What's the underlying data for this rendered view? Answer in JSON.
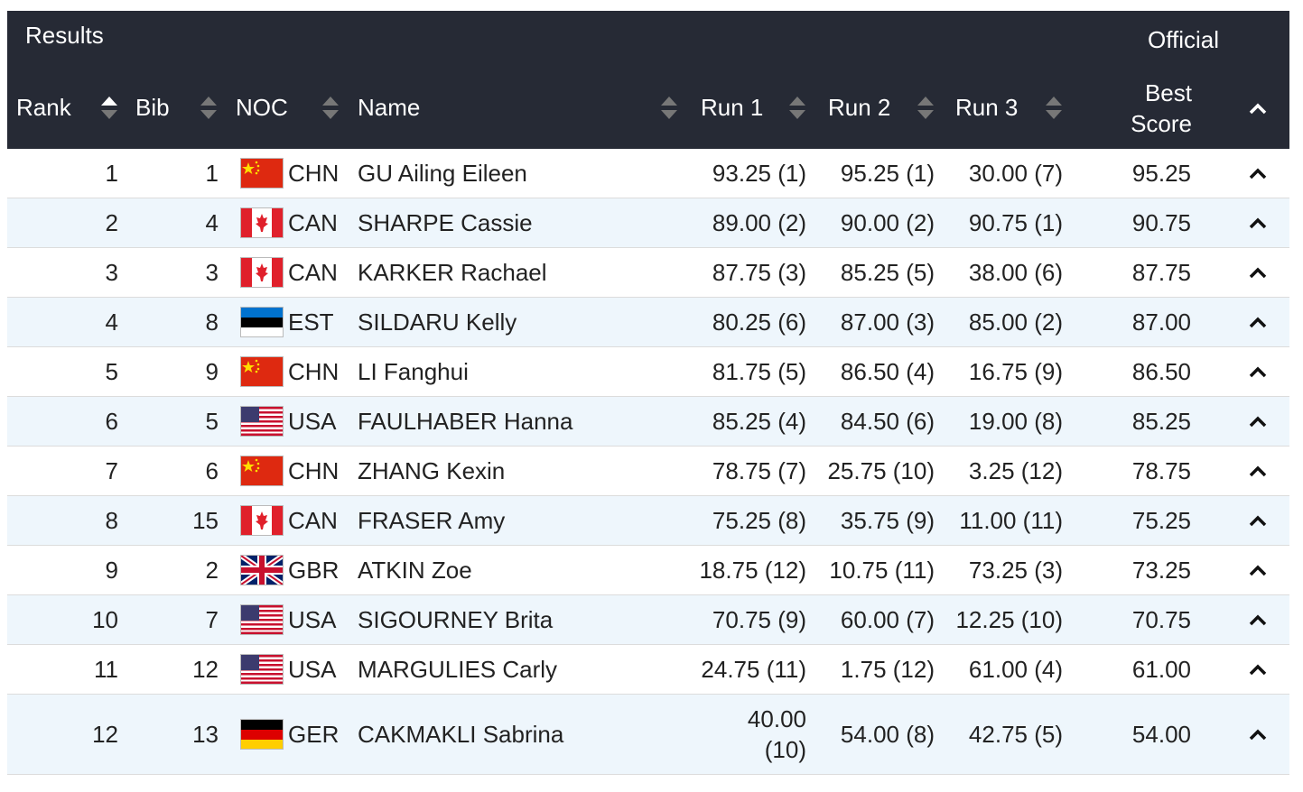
{
  "header": {
    "title": "Results",
    "status": "Official"
  },
  "table": {
    "columns": [
      "Rank",
      "Bib",
      "NOC",
      "Name",
      "Run 1",
      "Run 2",
      "Run 3",
      "Best Score"
    ],
    "rows": [
      [
        1,
        1,
        "CHN",
        "GU Ailing Eileen",
        "93.25 (1)",
        "95.25 (1)",
        "30.00 (7)",
        "95.25"
      ],
      [
        2,
        4,
        "CAN",
        "SHARPE Cassie",
        "89.00 (2)",
        "90.00 (2)",
        "90.75 (1)",
        "90.75"
      ],
      [
        3,
        3,
        "CAN",
        "KARKER Rachael",
        "87.75 (3)",
        "85.25 (5)",
        "38.00 (6)",
        "87.75"
      ],
      [
        4,
        8,
        "EST",
        "SILDARU Kelly",
        "80.25 (6)",
        "87.00 (3)",
        "85.00 (2)",
        "87.00"
      ],
      [
        5,
        9,
        "CHN",
        "LI Fanghui",
        "81.75 (5)",
        "86.50 (4)",
        "16.75 (9)",
        "86.50"
      ],
      [
        6,
        5,
        "USA",
        "FAULHABER Hanna",
        "85.25 (4)",
        "84.50 (6)",
        "19.00 (8)",
        "85.25"
      ],
      [
        7,
        6,
        "CHN",
        "ZHANG Kexin",
        "78.75 (7)",
        "25.75 (10)",
        "3.25 (12)",
        "78.75"
      ],
      [
        8,
        15,
        "CAN",
        "FRASER Amy",
        "75.25 (8)",
        "35.75 (9)",
        "11.00 (11)",
        "75.25"
      ],
      [
        9,
        2,
        "GBR",
        "ATKIN Zoe",
        "18.75 (12)",
        "10.75 (11)",
        "73.25 (3)",
        "73.25"
      ],
      [
        10,
        7,
        "USA",
        "SIGOURNEY Brita",
        "70.75 (9)",
        "60.00 (7)",
        "12.25 (10)",
        "70.75"
      ],
      [
        11,
        12,
        "USA",
        "MARGULIES Carly",
        "24.75 (11)",
        "1.75 (12)",
        "61.00 (4)",
        "61.00"
      ],
      [
        12,
        13,
        "GER",
        "CAKMAKLI Sabrina",
        "40.00 (10)",
        "54.00 (8)",
        "42.75 (5)",
        "54.00"
      ]
    ]
  }
}
